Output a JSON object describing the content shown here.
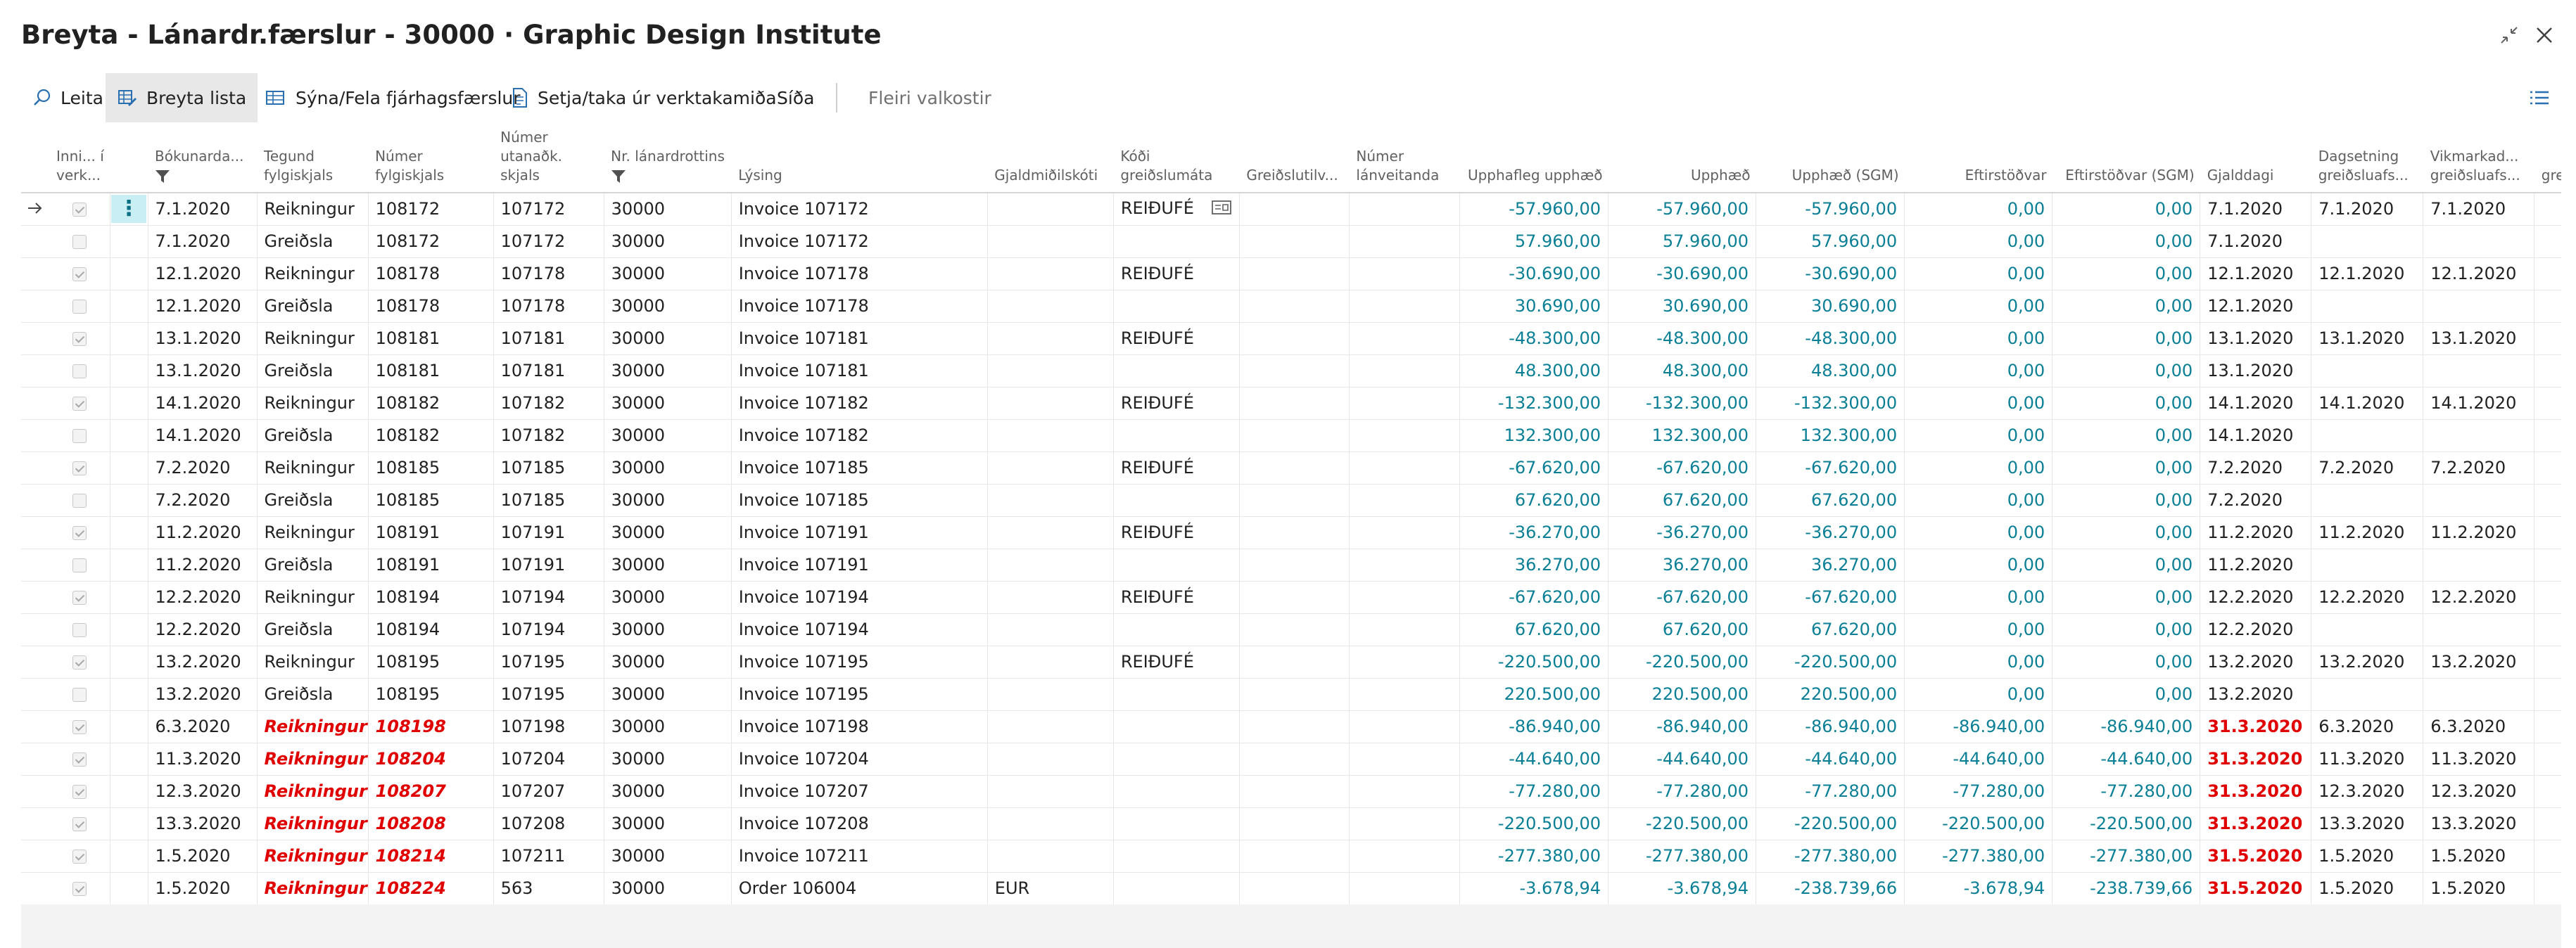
{
  "window": {
    "title": "Breyta - Lánardr.færslur - 30000 · Graphic Design Institute"
  },
  "toolbar": {
    "search_label": "Leita",
    "edit_list_label": "Breyta lista",
    "show_hide_label": "Sýna/Fela fjárhagsfærslur",
    "project_label": "Setja/taka úr verktakamiða",
    "page_label": "Síða",
    "more_label": "Fleiri valkostir"
  },
  "columns": {
    "included": "Inni... í verk...",
    "posting_date": "Bókunarda...",
    "doc_type": "Tegund fylgiskjals",
    "doc_no": "Númer fylgiskjals",
    "ext_doc_no": "Númer utanaðk. skjals",
    "vendor_no": "Nr. lánardrottins",
    "description": "Lýsing",
    "currency": "Gjaldmiðilskóti",
    "pay_method": "Kóði greiðslumáta",
    "pay_ref": "Greiðslutilv...",
    "creditor_no": "Númer lánveitanda",
    "orig_amount": "Upphafleg upphæð",
    "amount": "Upphæð",
    "amount_lcy": "Upphæð (SGM)",
    "remaining": "Eftirstöðvar",
    "remaining_lcy": "Eftirstöðvar (SGM)",
    "due_date": "Gjalddagi",
    "disc_date": "Dagsetning greiðsluafs...",
    "tol_date": "Vikmarkad... greiðsluafs...",
    "more": "greiðs..."
  },
  "rows": [
    {
      "inc": true,
      "date": "7.1.2020",
      "type": "Reikningur",
      "doc": "108172",
      "ext": "107172",
      "vendor": "30000",
      "desc": "Invoice 107172",
      "cur": "",
      "pm": "REIÐUFÉ",
      "orig": "-57.960,00",
      "amt": "-57.960,00",
      "amtl": "-57.960,00",
      "rem": "0,00",
      "reml": "0,00",
      "due": "7.1.2020",
      "disc": "7.1.2020",
      "tol": "7.1.2020",
      "overdue": false
    },
    {
      "inc": false,
      "date": "7.1.2020",
      "type": "Greiðsla",
      "doc": "108172",
      "ext": "107172",
      "vendor": "30000",
      "desc": "Invoice 107172",
      "cur": "",
      "pm": "",
      "orig": "57.960,00",
      "amt": "57.960,00",
      "amtl": "57.960,00",
      "rem": "0,00",
      "reml": "0,00",
      "due": "7.1.2020",
      "disc": "",
      "tol": "",
      "overdue": false
    },
    {
      "inc": true,
      "date": "12.1.2020",
      "type": "Reikningur",
      "doc": "108178",
      "ext": "107178",
      "vendor": "30000",
      "desc": "Invoice 107178",
      "cur": "",
      "pm": "REIÐUFÉ",
      "orig": "-30.690,00",
      "amt": "-30.690,00",
      "amtl": "-30.690,00",
      "rem": "0,00",
      "reml": "0,00",
      "due": "12.1.2020",
      "disc": "12.1.2020",
      "tol": "12.1.2020",
      "overdue": false
    },
    {
      "inc": false,
      "date": "12.1.2020",
      "type": "Greiðsla",
      "doc": "108178",
      "ext": "107178",
      "vendor": "30000",
      "desc": "Invoice 107178",
      "cur": "",
      "pm": "",
      "orig": "30.690,00",
      "amt": "30.690,00",
      "amtl": "30.690,00",
      "rem": "0,00",
      "reml": "0,00",
      "due": "12.1.2020",
      "disc": "",
      "tol": "",
      "overdue": false
    },
    {
      "inc": true,
      "date": "13.1.2020",
      "type": "Reikningur",
      "doc": "108181",
      "ext": "107181",
      "vendor": "30000",
      "desc": "Invoice 107181",
      "cur": "",
      "pm": "REIÐUFÉ",
      "orig": "-48.300,00",
      "amt": "-48.300,00",
      "amtl": "-48.300,00",
      "rem": "0,00",
      "reml": "0,00",
      "due": "13.1.2020",
      "disc": "13.1.2020",
      "tol": "13.1.2020",
      "overdue": false
    },
    {
      "inc": false,
      "date": "13.1.2020",
      "type": "Greiðsla",
      "doc": "108181",
      "ext": "107181",
      "vendor": "30000",
      "desc": "Invoice 107181",
      "cur": "",
      "pm": "",
      "orig": "48.300,00",
      "amt": "48.300,00",
      "amtl": "48.300,00",
      "rem": "0,00",
      "reml": "0,00",
      "due": "13.1.2020",
      "disc": "",
      "tol": "",
      "overdue": false
    },
    {
      "inc": true,
      "date": "14.1.2020",
      "type": "Reikningur",
      "doc": "108182",
      "ext": "107182",
      "vendor": "30000",
      "desc": "Invoice 107182",
      "cur": "",
      "pm": "REIÐUFÉ",
      "orig": "-132.300,00",
      "amt": "-132.300,00",
      "amtl": "-132.300,00",
      "rem": "0,00",
      "reml": "0,00",
      "due": "14.1.2020",
      "disc": "14.1.2020",
      "tol": "14.1.2020",
      "overdue": false
    },
    {
      "inc": false,
      "date": "14.1.2020",
      "type": "Greiðsla",
      "doc": "108182",
      "ext": "107182",
      "vendor": "30000",
      "desc": "Invoice 107182",
      "cur": "",
      "pm": "",
      "orig": "132.300,00",
      "amt": "132.300,00",
      "amtl": "132.300,00",
      "rem": "0,00",
      "reml": "0,00",
      "due": "14.1.2020",
      "disc": "",
      "tol": "",
      "overdue": false
    },
    {
      "inc": true,
      "date": "7.2.2020",
      "type": "Reikningur",
      "doc": "108185",
      "ext": "107185",
      "vendor": "30000",
      "desc": "Invoice 107185",
      "cur": "",
      "pm": "REIÐUFÉ",
      "orig": "-67.620,00",
      "amt": "-67.620,00",
      "amtl": "-67.620,00",
      "rem": "0,00",
      "reml": "0,00",
      "due": "7.2.2020",
      "disc": "7.2.2020",
      "tol": "7.2.2020",
      "overdue": false
    },
    {
      "inc": false,
      "date": "7.2.2020",
      "type": "Greiðsla",
      "doc": "108185",
      "ext": "107185",
      "vendor": "30000",
      "desc": "Invoice 107185",
      "cur": "",
      "pm": "",
      "orig": "67.620,00",
      "amt": "67.620,00",
      "amtl": "67.620,00",
      "rem": "0,00",
      "reml": "0,00",
      "due": "7.2.2020",
      "disc": "",
      "tol": "",
      "overdue": false
    },
    {
      "inc": true,
      "date": "11.2.2020",
      "type": "Reikningur",
      "doc": "108191",
      "ext": "107191",
      "vendor": "30000",
      "desc": "Invoice 107191",
      "cur": "",
      "pm": "REIÐUFÉ",
      "orig": "-36.270,00",
      "amt": "-36.270,00",
      "amtl": "-36.270,00",
      "rem": "0,00",
      "reml": "0,00",
      "due": "11.2.2020",
      "disc": "11.2.2020",
      "tol": "11.2.2020",
      "overdue": false
    },
    {
      "inc": false,
      "date": "11.2.2020",
      "type": "Greiðsla",
      "doc": "108191",
      "ext": "107191",
      "vendor": "30000",
      "desc": "Invoice 107191",
      "cur": "",
      "pm": "",
      "orig": "36.270,00",
      "amt": "36.270,00",
      "amtl": "36.270,00",
      "rem": "0,00",
      "reml": "0,00",
      "due": "11.2.2020",
      "disc": "",
      "tol": "",
      "overdue": false
    },
    {
      "inc": true,
      "date": "12.2.2020",
      "type": "Reikningur",
      "doc": "108194",
      "ext": "107194",
      "vendor": "30000",
      "desc": "Invoice 107194",
      "cur": "",
      "pm": "REIÐUFÉ",
      "orig": "-67.620,00",
      "amt": "-67.620,00",
      "amtl": "-67.620,00",
      "rem": "0,00",
      "reml": "0,00",
      "due": "12.2.2020",
      "disc": "12.2.2020",
      "tol": "12.2.2020",
      "overdue": false
    },
    {
      "inc": false,
      "date": "12.2.2020",
      "type": "Greiðsla",
      "doc": "108194",
      "ext": "107194",
      "vendor": "30000",
      "desc": "Invoice 107194",
      "cur": "",
      "pm": "",
      "orig": "67.620,00",
      "amt": "67.620,00",
      "amtl": "67.620,00",
      "rem": "0,00",
      "reml": "0,00",
      "due": "12.2.2020",
      "disc": "",
      "tol": "",
      "overdue": false
    },
    {
      "inc": true,
      "date": "13.2.2020",
      "type": "Reikningur",
      "doc": "108195",
      "ext": "107195",
      "vendor": "30000",
      "desc": "Invoice 107195",
      "cur": "",
      "pm": "REIÐUFÉ",
      "orig": "-220.500,00",
      "amt": "-220.500,00",
      "amtl": "-220.500,00",
      "rem": "0,00",
      "reml": "0,00",
      "due": "13.2.2020",
      "disc": "13.2.2020",
      "tol": "13.2.2020",
      "overdue": false
    },
    {
      "inc": false,
      "date": "13.2.2020",
      "type": "Greiðsla",
      "doc": "108195",
      "ext": "107195",
      "vendor": "30000",
      "desc": "Invoice 107195",
      "cur": "",
      "pm": "",
      "orig": "220.500,00",
      "amt": "220.500,00",
      "amtl": "220.500,00",
      "rem": "0,00",
      "reml": "0,00",
      "due": "13.2.2020",
      "disc": "",
      "tol": "",
      "overdue": false
    },
    {
      "inc": true,
      "date": "6.3.2020",
      "type": "Reikningur",
      "doc": "108198",
      "ext": "107198",
      "vendor": "30000",
      "desc": "Invoice 107198",
      "cur": "",
      "pm": "",
      "orig": "-86.940,00",
      "amt": "-86.940,00",
      "amtl": "-86.940,00",
      "rem": "-86.940,00",
      "reml": "-86.940,00",
      "due": "31.3.2020",
      "disc": "6.3.2020",
      "tol": "6.3.2020",
      "overdue": true
    },
    {
      "inc": true,
      "date": "11.3.2020",
      "type": "Reikningur",
      "doc": "108204",
      "ext": "107204",
      "vendor": "30000",
      "desc": "Invoice 107204",
      "cur": "",
      "pm": "",
      "orig": "-44.640,00",
      "amt": "-44.640,00",
      "amtl": "-44.640,00",
      "rem": "-44.640,00",
      "reml": "-44.640,00",
      "due": "31.3.2020",
      "disc": "11.3.2020",
      "tol": "11.3.2020",
      "overdue": true
    },
    {
      "inc": true,
      "date": "12.3.2020",
      "type": "Reikningur",
      "doc": "108207",
      "ext": "107207",
      "vendor": "30000",
      "desc": "Invoice 107207",
      "cur": "",
      "pm": "",
      "orig": "-77.280,00",
      "amt": "-77.280,00",
      "amtl": "-77.280,00",
      "rem": "-77.280,00",
      "reml": "-77.280,00",
      "due": "31.3.2020",
      "disc": "12.3.2020",
      "tol": "12.3.2020",
      "overdue": true
    },
    {
      "inc": true,
      "date": "13.3.2020",
      "type": "Reikningur",
      "doc": "108208",
      "ext": "107208",
      "vendor": "30000",
      "desc": "Invoice 107208",
      "cur": "",
      "pm": "",
      "orig": "-220.500,00",
      "amt": "-220.500,00",
      "amtl": "-220.500,00",
      "rem": "-220.500,00",
      "reml": "-220.500,00",
      "due": "31.3.2020",
      "disc": "13.3.2020",
      "tol": "13.3.2020",
      "overdue": true
    },
    {
      "inc": true,
      "date": "1.5.2020",
      "type": "Reikningur",
      "doc": "108214",
      "ext": "107211",
      "vendor": "30000",
      "desc": "Invoice 107211",
      "cur": "",
      "pm": "",
      "orig": "-277.380,00",
      "amt": "-277.380,00",
      "amtl": "-277.380,00",
      "rem": "-277.380,00",
      "reml": "-277.380,00",
      "due": "31.5.2020",
      "disc": "1.5.2020",
      "tol": "1.5.2020",
      "overdue": true
    },
    {
      "inc": true,
      "date": "1.5.2020",
      "type": "Reikningur",
      "doc": "108224",
      "ext": "563",
      "vendor": "30000",
      "desc": "Order 106004",
      "cur": "EUR",
      "pm": "",
      "orig": "-3.678,94",
      "amt": "-3.678,94",
      "amtl": "-238.739,66",
      "rem": "-3.678,94",
      "reml": "-238.739,66",
      "due": "31.5.2020",
      "disc": "1.5.2020",
      "tol": "1.5.2020",
      "overdue": true
    }
  ],
  "colors": {
    "accent_teal": "#0a7f96",
    "overdue_red": "#e00000",
    "selected_row_menu_bg": "#c9eef4"
  }
}
